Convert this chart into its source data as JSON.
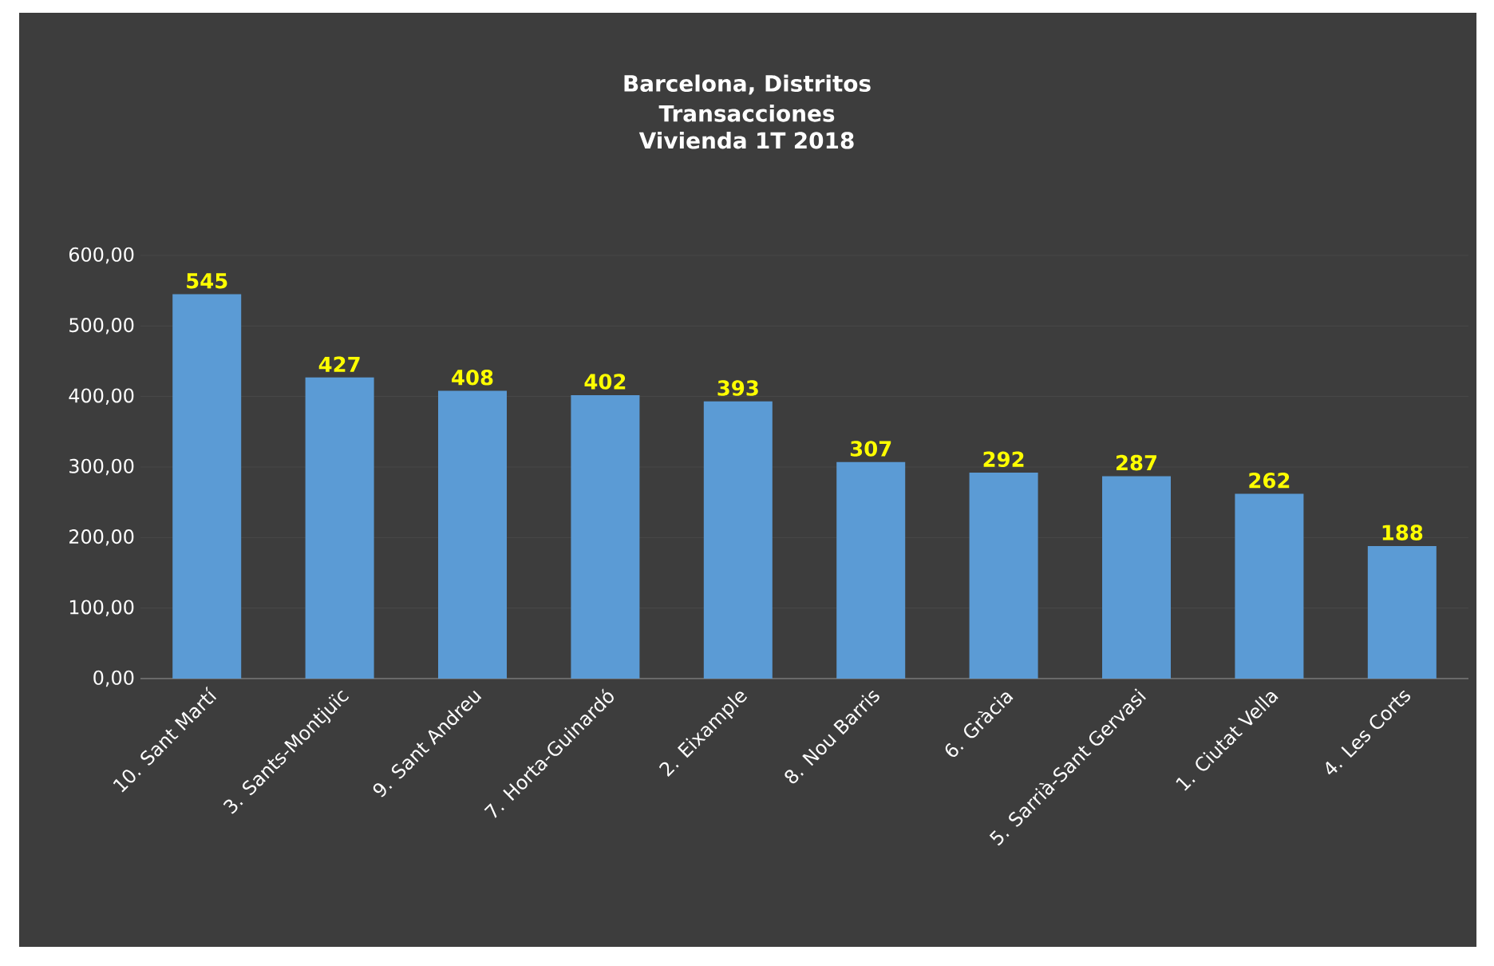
{
  "chart_data": {
    "type": "bar",
    "title": "Barcelona, Distritos",
    "subtitle": "Transacciones Vivienda 1T 2018",
    "categories": [
      "10. Sant Martí",
      "3. Sants-Montjuïc",
      "9. Sant Andreu",
      "7. Horta-Guinardó",
      "2. Eixample",
      "8. Nou Barris",
      "6. Gràcia",
      "5. Sarrià-Sant Gervasi",
      "1. Ciutat Vella",
      "4. Les Corts"
    ],
    "values": [
      545,
      427,
      408,
      402,
      393,
      307,
      292,
      287,
      262,
      188
    ],
    "color": "#5b9bd5",
    "ylim": [
      0,
      600
    ],
    "yticks": [
      {
        "value": 0,
        "label": "0,00"
      },
      {
        "value": 100,
        "label": "100,00"
      },
      {
        "value": 200,
        "label": "200,00"
      },
      {
        "value": 300,
        "label": "300,00"
      },
      {
        "value": 400,
        "label": "400,00"
      },
      {
        "value": 500,
        "label": "500,00"
      },
      {
        "value": 600,
        "label": "600,00"
      }
    ],
    "grid": "y",
    "data_labels": true
  }
}
